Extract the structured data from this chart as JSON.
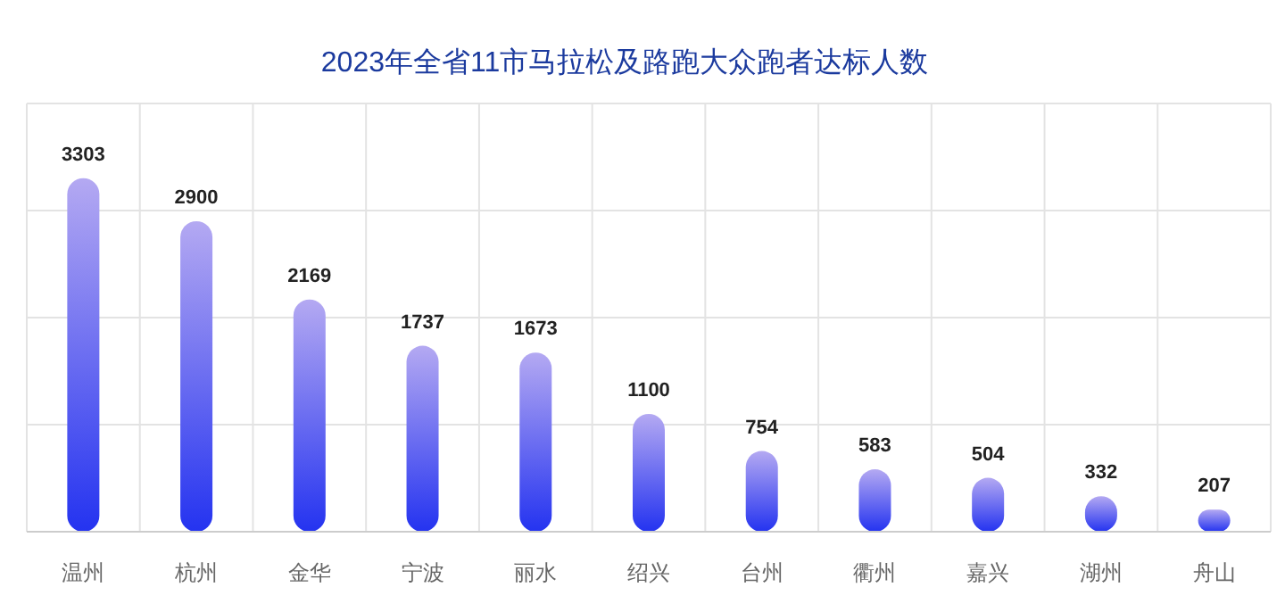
{
  "chart_data": {
    "type": "bar",
    "title": "2023年全省11市马拉松及路跑大众跑者达标人数",
    "categories": [
      "温州",
      "杭州",
      "金华",
      "宁波",
      "丽水",
      "绍兴",
      "台州",
      "衢州",
      "嘉兴",
      "湖州",
      "舟山"
    ],
    "values": [
      3303,
      2900,
      2169,
      1737,
      1673,
      1100,
      754,
      583,
      504,
      332,
      207
    ],
    "color": "#2433f0",
    "ylim": [
      0,
      4000
    ],
    "yticks": [
      {
        "value": 0,
        "label": null
      },
      {
        "value": 1000,
        "label": null
      },
      {
        "value": 2000,
        "label": null
      },
      {
        "value": 3000,
        "label": null
      },
      {
        "value": 4000,
        "label": null
      }
    ],
    "tick_labels": "x",
    "grid": true,
    "data_labels": true
  }
}
